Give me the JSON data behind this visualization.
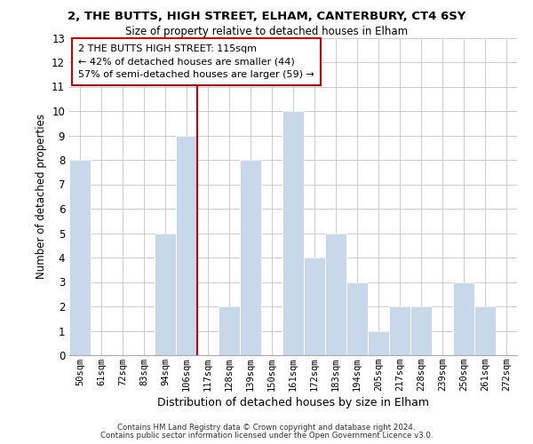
{
  "title": "2, THE BUTTS, HIGH STREET, ELHAM, CANTERBURY, CT4 6SY",
  "subtitle": "Size of property relative to detached houses in Elham",
  "xlabel": "Distribution of detached houses by size in Elham",
  "ylabel": "Number of detached properties",
  "bar_color": "#c8d8ea",
  "bins": [
    "50sqm",
    "61sqm",
    "72sqm",
    "83sqm",
    "94sqm",
    "106sqm",
    "117sqm",
    "128sqm",
    "139sqm",
    "150sqm",
    "161sqm",
    "172sqm",
    "183sqm",
    "194sqm",
    "205sqm",
    "217sqm",
    "228sqm",
    "239sqm",
    "250sqm",
    "261sqm",
    "272sqm"
  ],
  "values": [
    8,
    0,
    0,
    0,
    5,
    9,
    0,
    2,
    8,
    0,
    10,
    4,
    5,
    3,
    1,
    2,
    2,
    0,
    3,
    2,
    0
  ],
  "ylim": [
    0,
    13
  ],
  "yticks": [
    0,
    1,
    2,
    3,
    4,
    5,
    6,
    7,
    8,
    9,
    10,
    11,
    12,
    13
  ],
  "property_line_color": "#cc0000",
  "annotation_text": "2 THE BUTTS HIGH STREET: 115sqm\n← 42% of detached houses are smaller (44)\n57% of semi-detached houses are larger (59) →",
  "annotation_box_edge": "#cc0000",
  "footnote1": "Contains HM Land Registry data © Crown copyright and database right 2024.",
  "footnote2": "Contains public sector information licensed under the Open Government Licence v3.0.",
  "grid_color": "#cccccc",
  "background_color": "#ffffff"
}
